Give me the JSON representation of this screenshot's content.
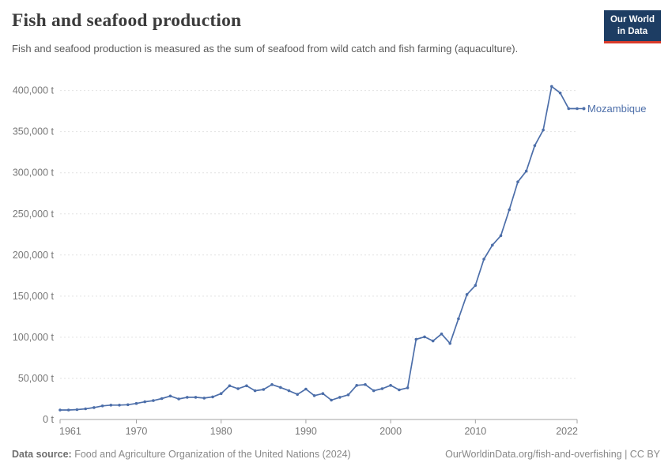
{
  "header": {
    "title": "Fish and seafood production",
    "subtitle": "Fish and seafood production is measured as the sum of seafood from wild catch and fish farming (aquaculture).",
    "logo_line1": "Our World",
    "logo_line2": "in Data"
  },
  "footer": {
    "source_label": "Data source:",
    "source_text": " Food and Agriculture Organization of the United Nations (2024)",
    "credit": "OurWorldinData.org/fish-and-overfishing | CC BY"
  },
  "colors": {
    "series_blue": "#4c6ea9",
    "logo_navy": "#1d3d63",
    "logo_red": "#d93b2b",
    "gridline": "#e2e2e2",
    "axis": "#a3a3a3",
    "tick_label": "#777777"
  },
  "chart_data": {
    "type": "line",
    "title": "Fish and seafood production",
    "unit": "t",
    "x_range": [
      1961,
      2022
    ],
    "ylim": [
      0,
      400000
    ],
    "grid": "horizontal dashed",
    "legend_position": "end-of-line label",
    "y_ticks": [
      {
        "value": 0,
        "label": "0 t"
      },
      {
        "value": 50000,
        "label": "50,000 t"
      },
      {
        "value": 100000,
        "label": "100,000 t"
      },
      {
        "value": 150000,
        "label": "150,000 t"
      },
      {
        "value": 200000,
        "label": "200,000 t"
      },
      {
        "value": 250000,
        "label": "250,000 t"
      },
      {
        "value": 300000,
        "label": "300,000 t"
      },
      {
        "value": 350000,
        "label": "350,000 t"
      },
      {
        "value": 400000,
        "label": "400,000 t"
      }
    ],
    "x_ticks": [
      {
        "year": 1961,
        "label": "1961",
        "align": "start"
      },
      {
        "year": 1970,
        "label": "1970",
        "align": "middle"
      },
      {
        "year": 1980,
        "label": "1980",
        "align": "middle"
      },
      {
        "year": 1990,
        "label": "1990",
        "align": "middle"
      },
      {
        "year": 2000,
        "label": "2000",
        "align": "middle"
      },
      {
        "year": 2010,
        "label": "2010",
        "align": "middle"
      },
      {
        "year": 2022,
        "label": "2022",
        "align": "end"
      }
    ],
    "series": [
      {
        "name": "Mozambique",
        "color": "#4c6ea9",
        "x": [
          1961,
          1962,
          1963,
          1964,
          1965,
          1966,
          1967,
          1968,
          1969,
          1970,
          1971,
          1972,
          1973,
          1974,
          1975,
          1976,
          1977,
          1978,
          1979,
          1980,
          1981,
          1982,
          1983,
          1984,
          1985,
          1986,
          1987,
          1988,
          1989,
          1990,
          1991,
          1992,
          1993,
          1994,
          1995,
          1996,
          1997,
          1998,
          1999,
          2000,
          2001,
          2002,
          2003,
          2004,
          2005,
          2006,
          2007,
          2008,
          2009,
          2010,
          2011,
          2012,
          2013,
          2014,
          2015,
          2016,
          2017,
          2018,
          2019,
          2020,
          2021,
          2022
        ],
        "values": [
          11500,
          11500,
          12000,
          13000,
          14500,
          16500,
          17500,
          17500,
          18000,
          19500,
          21500,
          23000,
          25500,
          28500,
          25000,
          27000,
          27000,
          26000,
          27500,
          31500,
          41000,
          37500,
          41000,
          35000,
          36500,
          42500,
          39000,
          35000,
          30500,
          37000,
          29000,
          31500,
          23500,
          27000,
          30000,
          41500,
          42500,
          35000,
          37500,
          41500,
          36000,
          38500,
          97500,
          100500,
          95500,
          104000,
          92500,
          122500,
          152000,
          163000,
          195000,
          212000,
          223500,
          255000,
          289000,
          302000,
          333000,
          352000,
          405000,
          397000,
          378000,
          378000
        ]
      }
    ]
  }
}
